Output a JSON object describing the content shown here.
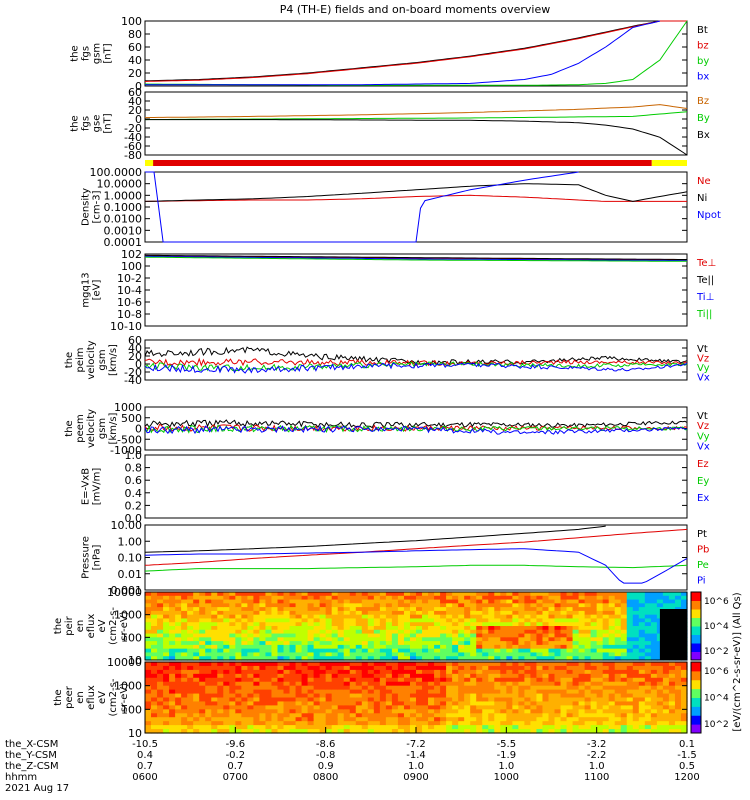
{
  "title": "P4 (TH-E) fields and on-board moments overview",
  "colors": {
    "black": "#000000",
    "red": "#e00000",
    "green": "#00cc00",
    "blue": "#0000ff",
    "orange": "#c86400",
    "yellow": "#ffff00"
  },
  "chart_data": [
    {
      "type": "line",
      "id": "fgs-gsm-mag",
      "ylabel": [
        "the",
        "fgs",
        "gsm",
        "[nT]"
      ],
      "ylim": [
        0,
        100
      ],
      "yticks": [
        "0",
        "20",
        "40",
        "60",
        "80",
        "100"
      ],
      "series": [
        {
          "name": "Bt",
          "color": "#000000",
          "x": [
            0,
            0.1,
            0.2,
            0.3,
            0.4,
            0.5,
            0.6,
            0.7,
            0.8,
            0.9,
            0.95,
            1.0
          ],
          "y": [
            8,
            10,
            14,
            20,
            28,
            36,
            46,
            58,
            74,
            92,
            100,
            100
          ]
        },
        {
          "name": "bz",
          "color": "#e00000",
          "x": [
            0,
            0.1,
            0.2,
            0.3,
            0.4,
            0.5,
            0.6,
            0.7,
            0.8,
            0.9,
            0.95,
            1.0
          ],
          "y": [
            7,
            9,
            13,
            19,
            27,
            35,
            45,
            57,
            73,
            91,
            100,
            100
          ]
        },
        {
          "name": "by",
          "color": "#00cc00",
          "x": [
            0,
            0.2,
            0.4,
            0.6,
            0.7,
            0.8,
            0.85,
            0.9,
            0.95,
            1.0
          ],
          "y": [
            3,
            2,
            1,
            1,
            1,
            2,
            4,
            10,
            40,
            100
          ]
        },
        {
          "name": "bx",
          "color": "#0000ff",
          "x": [
            0,
            0.2,
            0.4,
            0.6,
            0.7,
            0.75,
            0.8,
            0.85,
            0.9,
            0.95
          ],
          "y": [
            2,
            2,
            2,
            4,
            10,
            18,
            35,
            60,
            90,
            100
          ]
        }
      ]
    },
    {
      "type": "line",
      "id": "fgs-gse-mag",
      "ylabel": [
        "the",
        "fgs",
        "gse",
        "[nT]"
      ],
      "ylim": [
        -90,
        70
      ],
      "yticks": [
        "-80",
        "-60",
        "-40",
        "-20",
        "0",
        "20",
        "40",
        "60"
      ],
      "series": [
        {
          "name": "Bz",
          "color": "#c86400",
          "x": [
            0,
            0.2,
            0.4,
            0.6,
            0.7,
            0.8,
            0.9,
            0.95,
            1.0
          ],
          "y": [
            5,
            8,
            12,
            18,
            22,
            26,
            32,
            38,
            28
          ]
        },
        {
          "name": "By",
          "color": "#00cc00",
          "x": [
            0,
            0.3,
            0.6,
            0.9,
            1.0
          ],
          "y": [
            0,
            2,
            4,
            8,
            20
          ]
        },
        {
          "name": "Bx",
          "color": "#000000",
          "x": [
            0,
            0.2,
            0.4,
            0.6,
            0.7,
            0.8,
            0.85,
            0.9,
            0.95,
            1.0
          ],
          "y": [
            0,
            0,
            -1,
            -2,
            -4,
            -8,
            -14,
            -24,
            -45,
            -90
          ]
        }
      ]
    },
    {
      "type": "line",
      "id": "density",
      "ylabel": [
        "Density",
        "[cm-3]"
      ],
      "yscale": "log",
      "ylim": [
        0.0001,
        100
      ],
      "yticks": [
        "0.0001",
        "0.0010",
        "0.0100",
        "0.1000",
        "1.0000",
        "10.0000",
        "100.0000"
      ],
      "series": [
        {
          "name": "Ne",
          "color": "#e00000",
          "x": [
            0,
            0.1,
            0.2,
            0.3,
            0.4,
            0.5,
            0.6,
            0.7,
            0.8,
            0.85,
            0.9,
            1.0
          ],
          "y": [
            0.3,
            0.35,
            0.4,
            0.4,
            0.5,
            0.8,
            1.0,
            0.7,
            0.4,
            0.3,
            0.3,
            0.3
          ]
        },
        {
          "name": "Ni",
          "color": "#000000",
          "x": [
            0,
            0.1,
            0.2,
            0.3,
            0.4,
            0.5,
            0.6,
            0.7,
            0.8,
            0.85,
            0.9,
            0.95,
            1.0
          ],
          "y": [
            0.3,
            0.4,
            0.5,
            0.8,
            1.5,
            3,
            6,
            10,
            8,
            1,
            0.3,
            0.8,
            2
          ]
        },
        {
          "name": "Npot",
          "color": "#0000ff",
          "x": [
            0,
            0.02,
            0.03,
            0.5,
            0.51,
            0.6,
            0.7,
            0.8
          ],
          "y": [
            100,
            100,
            0.0001,
            0.0001,
            0.3,
            3,
            20,
            100
          ]
        }
      ]
    },
    {
      "type": "line",
      "id": "mom-temperature",
      "ylabel": [
        "mgq13",
        "[eV]"
      ],
      "yscale": "log",
      "ylim": [
        1e-10,
        100
      ],
      "yticks": [
        "10-10",
        "10-8",
        "10-6",
        "10-4",
        "10-2",
        "100",
        "102"
      ],
      "series": [
        {
          "name": "Te⊥",
          "color": "#e00000",
          "x": [
            0,
            0.5,
            1.0
          ],
          "y": [
            50,
            20,
            10
          ]
        },
        {
          "name": "Te||",
          "color": "#000000",
          "x": [
            0,
            0.5,
            1.0
          ],
          "y": [
            60,
            25,
            12
          ]
        },
        {
          "name": "Ti⊥",
          "color": "#0000ff",
          "x": [
            0,
            0.5,
            1.0
          ],
          "y": [
            40,
            15,
            8
          ]
        },
        {
          "name": "Ti||",
          "color": "#00cc00",
          "x": [
            0,
            0.5,
            1.0
          ],
          "y": [
            30,
            10,
            6
          ]
        }
      ]
    },
    {
      "type": "line",
      "id": "peim-velocity",
      "ylabel": [
        "the",
        "peim",
        "velocity",
        "gsm",
        "[km/s]"
      ],
      "ylim": [
        -40,
        60
      ],
      "yticks": [
        "-40",
        "-20",
        "0",
        "20",
        "40",
        "60"
      ],
      "series": [
        {
          "name": "Vt",
          "color": "#000000",
          "x": [
            0,
            0.1,
            0.2,
            0.3,
            0.5,
            0.7,
            0.85,
            1.0
          ],
          "y": [
            25,
            30,
            35,
            20,
            5,
            5,
            15,
            5
          ]
        },
        {
          "name": "Vz",
          "color": "#e00000",
          "x": [
            0,
            0.2,
            0.4,
            0.6,
            0.8,
            1.0
          ],
          "y": [
            5,
            5,
            3,
            2,
            5,
            3
          ]
        },
        {
          "name": "Vy",
          "color": "#00cc00",
          "x": [
            0,
            0.2,
            0.4,
            0.6,
            0.8,
            1.0
          ],
          "y": [
            -5,
            -10,
            -3,
            0,
            -5,
            0
          ]
        },
        {
          "name": "Vx",
          "color": "#0000ff",
          "x": [
            0,
            0.2,
            0.4,
            0.6,
            0.8,
            0.9,
            1.0
          ],
          "y": [
            -10,
            -15,
            -5,
            -2,
            -10,
            -15,
            0
          ]
        }
      ]
    },
    {
      "type": "line",
      "id": "peem-velocity",
      "ylabel": [
        "the",
        "peem",
        "velocity",
        "gsm",
        "[km/s]"
      ],
      "ylim": [
        -1000,
        1000
      ],
      "yticks": [
        "-1000",
        "-500",
        "0",
        "500",
        "1000"
      ],
      "series": [
        {
          "name": "Vt",
          "color": "#000000",
          "x": [
            0,
            0.2,
            0.4,
            0.6,
            0.8,
            1.0
          ],
          "y": [
            200,
            250,
            150,
            200,
            150,
            300
          ]
        },
        {
          "name": "Vz",
          "color": "#e00000",
          "x": [
            0,
            0.5,
            1.0
          ],
          "y": [
            20,
            10,
            20
          ]
        },
        {
          "name": "Vy",
          "color": "#00cc00",
          "x": [
            0,
            0.5,
            1.0
          ],
          "y": [
            -20,
            -10,
            0
          ]
        },
        {
          "name": "Vx",
          "color": "#0000ff",
          "x": [
            0,
            0.5,
            0.7,
            1.0
          ],
          "y": [
            -50,
            -30,
            -200,
            0
          ]
        }
      ]
    },
    {
      "type": "line",
      "id": "e-field",
      "ylabel": [
        "E=-VxB",
        "[mV/m]"
      ],
      "ylim": [
        0,
        1
      ],
      "yticks": [
        "0.0",
        "0.2",
        "0.4",
        "0.6",
        "0.8",
        "1.0"
      ],
      "series": [
        {
          "name": "Ez",
          "color": "#e00000",
          "x": [],
          "y": []
        },
        {
          "name": "Ey",
          "color": "#00cc00",
          "x": [],
          "y": []
        },
        {
          "name": "Ex",
          "color": "#0000ff",
          "x": [],
          "y": []
        }
      ]
    },
    {
      "type": "line",
      "id": "pressure",
      "ylabel": [
        "Pressure",
        "[nPa]"
      ],
      "yscale": "log",
      "ylim": [
        0.001,
        30
      ],
      "yticks": [
        "0.001",
        "0.01",
        "0.10",
        "1.00",
        "10.00"
      ],
      "series": [
        {
          "name": "Pt",
          "color": "#000000",
          "x": [
            0,
            0.1,
            0.2,
            0.3,
            0.4,
            0.5,
            0.6,
            0.7,
            0.8,
            0.85
          ],
          "y": [
            0.4,
            0.5,
            0.7,
            1.0,
            1.6,
            2.5,
            4.5,
            8,
            15,
            25
          ]
        },
        {
          "name": "Pb",
          "color": "#e00000",
          "x": [
            0,
            0.1,
            0.2,
            0.3,
            0.4,
            0.5,
            0.6,
            0.7,
            0.8,
            0.9,
            1.0
          ],
          "y": [
            0.05,
            0.08,
            0.15,
            0.25,
            0.4,
            0.7,
            1.2,
            2.0,
            4,
            8,
            15
          ]
        },
        {
          "name": "Pe",
          "color": "#00cc00",
          "x": [
            0,
            0.1,
            0.2,
            0.3,
            0.4,
            0.5,
            0.6,
            0.7,
            0.8,
            0.9,
            1.0
          ],
          "y": [
            0.02,
            0.03,
            0.03,
            0.03,
            0.035,
            0.04,
            0.05,
            0.05,
            0.04,
            0.035,
            0.05
          ]
        },
        {
          "name": "Pi",
          "color": "#0000ff",
          "x": [
            0,
            0.1,
            0.2,
            0.3,
            0.4,
            0.5,
            0.6,
            0.7,
            0.8,
            0.85,
            0.88,
            0.92,
            0.96,
            1.0
          ],
          "y": [
            0.25,
            0.3,
            0.3,
            0.35,
            0.4,
            0.5,
            0.6,
            0.7,
            0.4,
            0.05,
            0.003,
            0.003,
            0.02,
            0.15
          ]
        }
      ]
    },
    {
      "type": "heatmap",
      "id": "peir-eflux",
      "ylabel": [
        "the",
        "peir",
        "en",
        "eflux",
        "eV",
        "(cm2-s-",
        "sr-eV)"
      ],
      "yscale": "log",
      "ylim": [
        7,
        20000
      ],
      "yticks": [
        "10",
        "100",
        "1000",
        "10000"
      ]
    },
    {
      "type": "heatmap",
      "id": "peer-eflux",
      "ylabel": [
        "the",
        "peer",
        "en",
        "eflux",
        "eV",
        "(cm2-s-",
        "sr-eV)"
      ],
      "yscale": "log",
      "ylim": [
        7,
        20000
      ],
      "yticks": [
        "10",
        "100",
        "1000",
        "10000"
      ]
    }
  ],
  "colorbar": {
    "label": "[eV/(cm^2-s-sr-eV)] (All Qs)",
    "ticks_top": [
      "10^6",
      "10^4",
      "10^2"
    ],
    "ticks_bottom": [
      "10^6",
      "10^4",
      "10^2"
    ]
  },
  "xaxis": {
    "rows": [
      {
        "name": "the_X-CSM",
        "values": [
          "-10.5",
          "-9.6",
          "-8.6",
          "-7.2",
          "-5.5",
          "-3.2",
          "0.1"
        ]
      },
      {
        "name": "the_Y-CSM",
        "values": [
          "0.4",
          "-0.2",
          "-0.8",
          "-1.4",
          "-1.9",
          "-2.2",
          "-1.5"
        ]
      },
      {
        "name": "the_Z-CSM",
        "values": [
          "0.7",
          "0.7",
          "0.9",
          "1.0",
          "1.0",
          "1.0",
          "0.5"
        ]
      },
      {
        "name": "hhmm",
        "values": [
          "0600",
          "0700",
          "0800",
          "0900",
          "1000",
          "1100",
          "1200"
        ]
      }
    ],
    "date": "2021 Aug 17"
  }
}
